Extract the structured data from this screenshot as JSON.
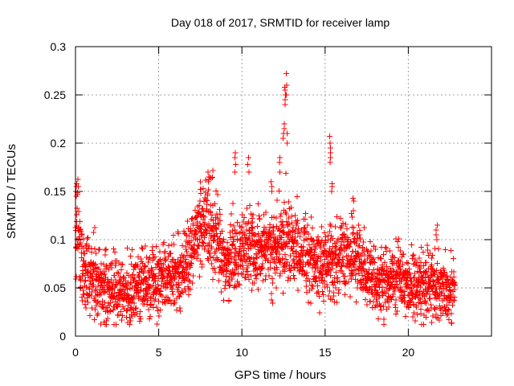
{
  "chart_data": {
    "type": "scatter",
    "title": "Day 018 of 2017, SRMTID for receiver lamp",
    "xlabel": "GPS time / hours",
    "ylabel": "SRMTID / TECUs",
    "xlim": [
      0,
      25
    ],
    "ylim": [
      0,
      0.3
    ],
    "xticks": [
      0,
      5,
      10,
      15,
      20
    ],
    "xtick_labels": [
      "0",
      "5",
      "10",
      "15",
      "20"
    ],
    "yticks": [
      0,
      0.05,
      0.1,
      0.15,
      0.2,
      0.25,
      0.3
    ],
    "ytick_labels": [
      "0",
      "0.05",
      "0.1",
      "0.15",
      "0.2",
      "0.25",
      "0.3"
    ],
    "grid": true,
    "marker": "+",
    "color": "#ff0000",
    "series": [
      {
        "name": "SRMTID",
        "trend": {
          "x": [
            0,
            0.1,
            0.3,
            0.8,
            1.5,
            2.5,
            3.5,
            4.2,
            5,
            5.8,
            6.5,
            7.2,
            7.8,
            8.3,
            9,
            9.7,
            10.5,
            11.3,
            12,
            12.7,
            13.5,
            14.5,
            15.3,
            16,
            16.8,
            17.5,
            18.3,
            19.2,
            20,
            21,
            22,
            22.8
          ],
          "y": [
            0.08,
            0.12,
            0.075,
            0.06,
            0.05,
            0.045,
            0.045,
            0.055,
            0.05,
            0.06,
            0.065,
            0.1,
            0.12,
            0.11,
            0.07,
            0.085,
            0.09,
            0.085,
            0.09,
            0.1,
            0.085,
            0.075,
            0.075,
            0.085,
            0.08,
            0.065,
            0.05,
            0.06,
            0.055,
            0.05,
            0.05,
            0.045
          ]
        },
        "spread": 0.022,
        "samples": 2600,
        "spikes": [
          {
            "x": 0.05,
            "y": [
              0.145,
              0.15,
              0.155,
              0.158
            ]
          },
          {
            "x": 7.5,
            "y": [
              0.14,
              0.148,
              0.152,
              0.16
            ]
          },
          {
            "x": 8.0,
            "y": [
              0.16,
              0.165,
              0.17
            ]
          },
          {
            "x": 9.6,
            "y": [
              0.17,
              0.178,
              0.185,
              0.19
            ]
          },
          {
            "x": 10.4,
            "y": [
              0.17,
              0.178,
              0.185
            ]
          },
          {
            "x": 11.8,
            "y": [
              0.15,
              0.155,
              0.16
            ]
          },
          {
            "x": 12.3,
            "y": [
              0.17,
              0.18,
              0.185
            ]
          },
          {
            "x": 12.5,
            "y": [
              0.205,
              0.21,
              0.215,
              0.22
            ]
          },
          {
            "x": 12.6,
            "y": [
              0.24,
              0.245,
              0.25,
              0.255,
              0.258
            ]
          },
          {
            "x": 12.7,
            "y": [
              0.2,
              0.21,
              0.25,
              0.26,
              0.272
            ]
          },
          {
            "x": 15.3,
            "y": [
              0.18,
              0.185,
              0.19,
              0.195,
              0.2,
              0.207
            ]
          },
          {
            "x": 15.4,
            "y": [
              0.15,
              0.155,
              0.158
            ]
          },
          {
            "x": 16.7,
            "y": [
              0.13,
              0.14,
              0.143
            ]
          },
          {
            "x": 21.7,
            "y": [
              0.1,
              0.105,
              0.11,
              0.115
            ]
          }
        ]
      }
    ]
  }
}
